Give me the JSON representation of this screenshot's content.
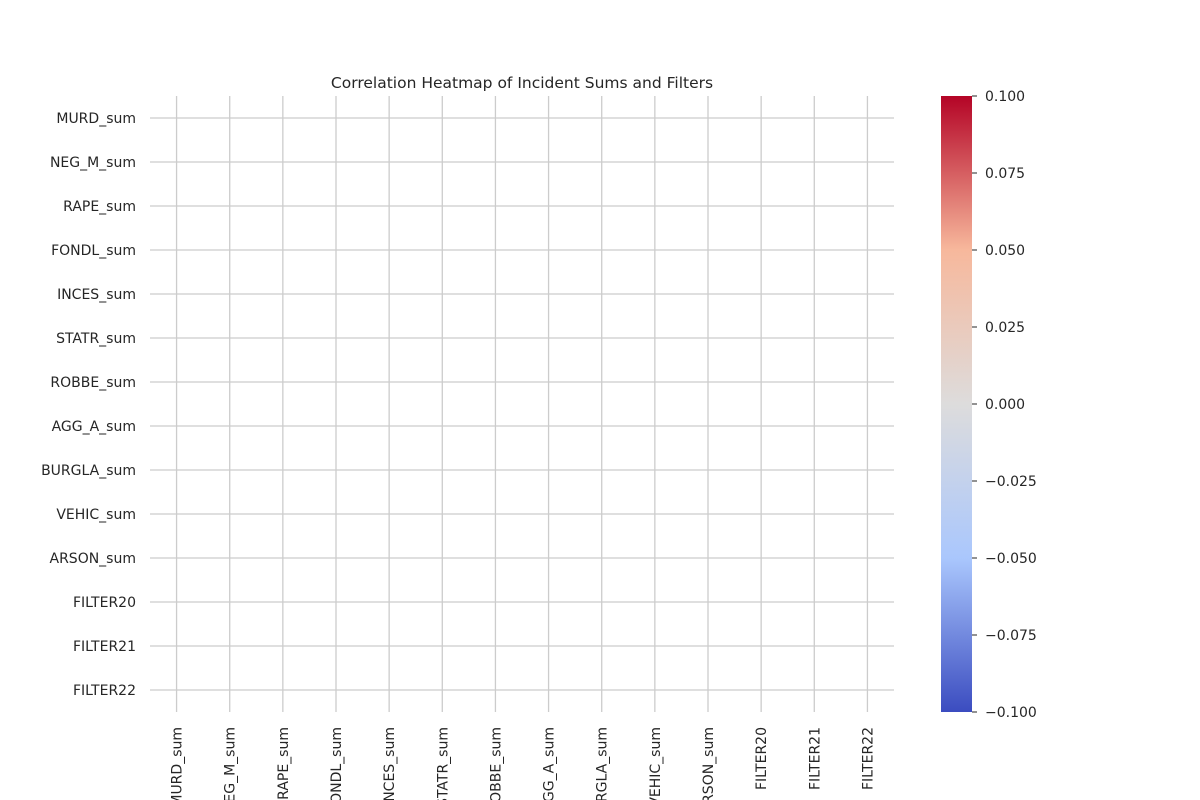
{
  "chart_data": {
    "type": "heatmap",
    "title": "Correlation Heatmap of Incident Sums and Filters",
    "xlabel": "",
    "ylabel": "",
    "row_labels": [
      "MURD_sum",
      "NEG_M_sum",
      "RAPE_sum",
      "FONDL_sum",
      "INCES_sum",
      "STATR_sum",
      "ROBBE_sum",
      "AGG_A_sum",
      "BURGLA_sum",
      "VEHIC_sum",
      "ARSON_sum",
      "FILTER20",
      "FILTER21",
      "FILTER22"
    ],
    "col_labels": [
      "MURD_sum",
      "NEG_M_sum",
      "RAPE_sum",
      "FONDL_sum",
      "INCES_sum",
      "STATR_sum",
      "ROBBE_sum",
      "AGG_A_sum",
      "BURGLA_sum",
      "VEHIC_sum",
      "ARSON_sum",
      "FILTER20",
      "FILTER21",
      "FILTER22"
    ],
    "values": [
      [
        null,
        null,
        null,
        null,
        null,
        null,
        null,
        null,
        null,
        null,
        null,
        null,
        null,
        null
      ],
      [
        null,
        null,
        null,
        null,
        null,
        null,
        null,
        null,
        null,
        null,
        null,
        null,
        null,
        null
      ],
      [
        null,
        null,
        null,
        null,
        null,
        null,
        null,
        null,
        null,
        null,
        null,
        null,
        null,
        null
      ],
      [
        null,
        null,
        null,
        null,
        null,
        null,
        null,
        null,
        null,
        null,
        null,
        null,
        null,
        null
      ],
      [
        null,
        null,
        null,
        null,
        null,
        null,
        null,
        null,
        null,
        null,
        null,
        null,
        null,
        null
      ],
      [
        null,
        null,
        null,
        null,
        null,
        null,
        null,
        null,
        null,
        null,
        null,
        null,
        null,
        null
      ],
      [
        null,
        null,
        null,
        null,
        null,
        null,
        null,
        null,
        null,
        null,
        null,
        null,
        null,
        null
      ],
      [
        null,
        null,
        null,
        null,
        null,
        null,
        null,
        null,
        null,
        null,
        null,
        null,
        null,
        null
      ],
      [
        null,
        null,
        null,
        null,
        null,
        null,
        null,
        null,
        null,
        null,
        null,
        null,
        null,
        null
      ],
      [
        null,
        null,
        null,
        null,
        null,
        null,
        null,
        null,
        null,
        null,
        null,
        null,
        null,
        null
      ],
      [
        null,
        null,
        null,
        null,
        null,
        null,
        null,
        null,
        null,
        null,
        null,
        null,
        null,
        null
      ],
      [
        null,
        null,
        null,
        null,
        null,
        null,
        null,
        null,
        null,
        null,
        null,
        null,
        null,
        null
      ],
      [
        null,
        null,
        null,
        null,
        null,
        null,
        null,
        null,
        null,
        null,
        null,
        null,
        null,
        null
      ],
      [
        null,
        null,
        null,
        null,
        null,
        null,
        null,
        null,
        null,
        null,
        null,
        null,
        null,
        null
      ]
    ],
    "colormap": "coolwarm",
    "colorbar": {
      "range": [
        -0.1,
        0.1
      ],
      "ticks": [
        0.1,
        0.075,
        0.05,
        0.025,
        0.0,
        -0.025,
        -0.05,
        -0.075,
        -0.1
      ],
      "tick_labels": [
        "0.100",
        "0.075",
        "0.050",
        "0.025",
        "0.000",
        "−0.025",
        "−0.050",
        "−0.075",
        "−0.100"
      ],
      "colors": [
        "#b40426",
        "#f7b89c",
        "#dddcdc",
        "#aac7fd",
        "#3b4cc0"
      ]
    },
    "grid": true,
    "grid_color": "#cccccc"
  }
}
